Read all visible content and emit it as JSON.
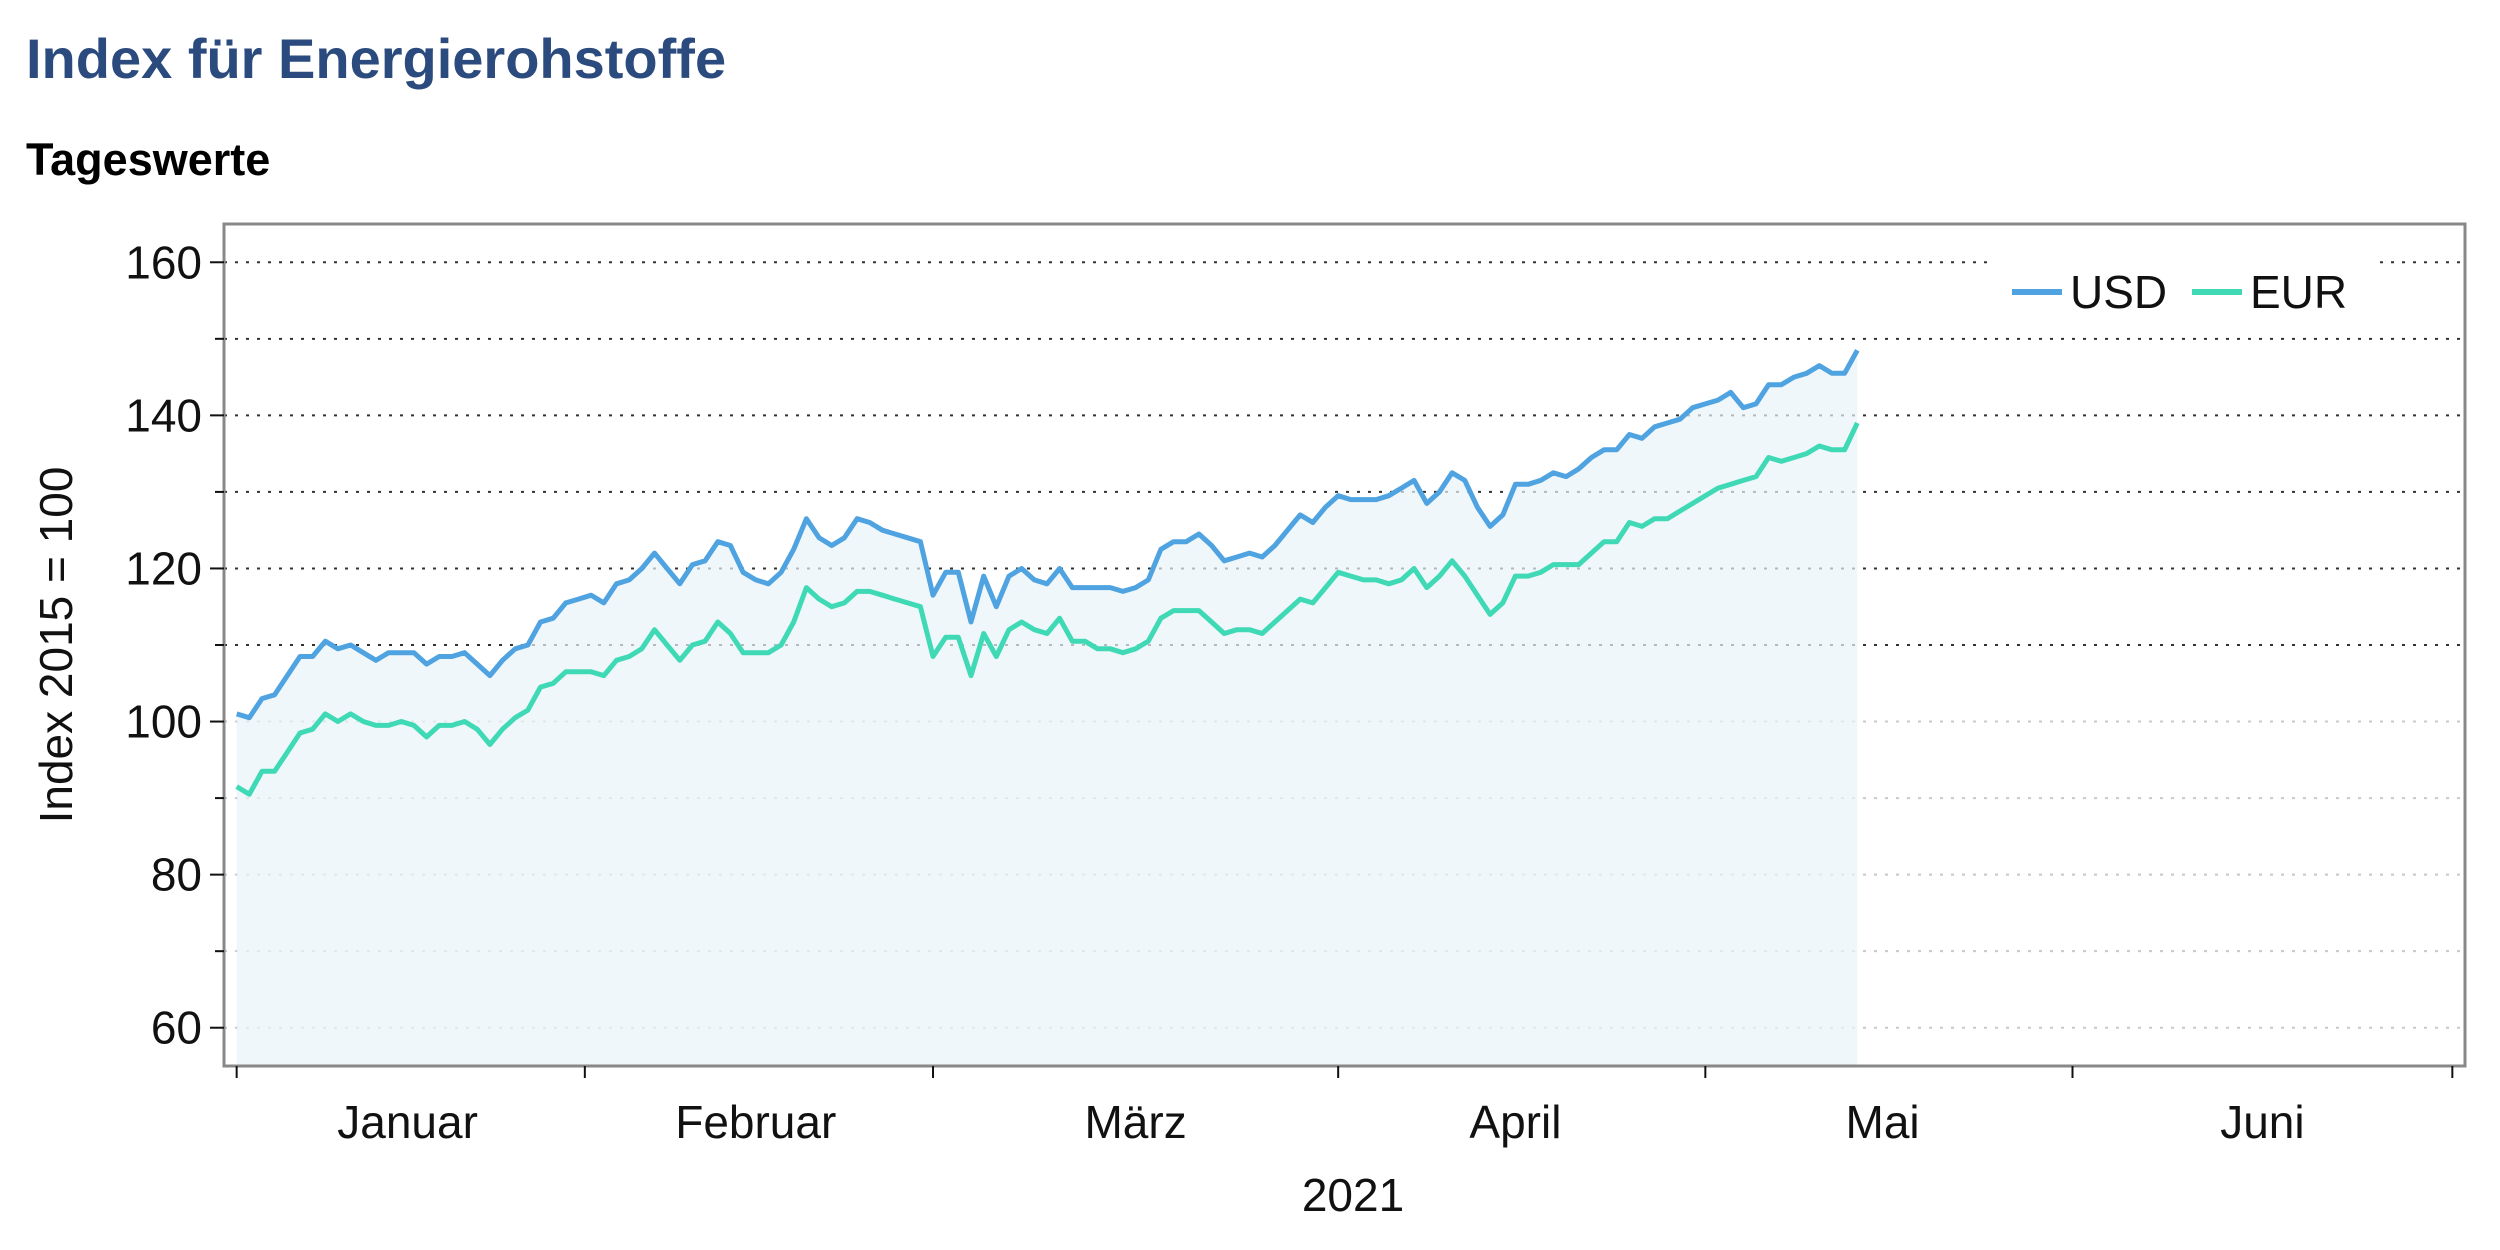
{
  "colors": {
    "title": "#2b4a7e",
    "usd": "#4fa3e0",
    "eur": "#3fd9b5",
    "fill": "#eaf4fa"
  },
  "chart_data": {
    "type": "line",
    "title": "Index für Energierohstoffe",
    "subtitle": "Tageswerte",
    "xlabel": "2021",
    "ylabel": "Index 2015 = 100",
    "ylim": [
      55,
      165
    ],
    "yticks": [
      60,
      80,
      100,
      120,
      140,
      160
    ],
    "xlim": [
      -1,
      176
    ],
    "month_labels": [
      "Januar",
      "Februar",
      "März",
      "April",
      "Mai",
      "Juni"
    ],
    "month_label_positions": [
      13.5,
      41,
      71,
      101,
      130,
      160
    ],
    "month_boundaries": [
      0,
      27.5,
      55,
      87,
      116,
      145,
      175
    ],
    "grid": true,
    "legend": "top-right",
    "series": [
      {
        "name": "USD",
        "color": "#4fa3e0",
        "values": [
          101,
          100.5,
          103,
          103.5,
          106,
          108.5,
          108.5,
          110.5,
          109.5,
          110,
          109,
          108,
          109,
          109,
          109,
          107.5,
          108.5,
          108.5,
          109,
          107.5,
          106,
          108,
          109.5,
          110,
          113,
          113.5,
          115.5,
          116,
          116.5,
          115.5,
          118,
          118.5,
          120,
          122,
          120,
          118,
          120.5,
          121,
          123.5,
          123,
          119.5,
          118.5,
          118,
          119.5,
          122.5,
          126.5,
          124,
          123,
          124,
          126.5,
          126,
          125,
          124.5,
          124,
          123.5,
          116.5,
          119.5,
          119.5,
          113,
          119,
          115,
          119,
          120,
          118.5,
          118,
          120,
          117.5,
          117.5,
          117.5,
          117.5,
          117,
          117.5,
          118.5,
          122.5,
          123.5,
          123.5,
          124.5,
          123,
          121,
          121.5,
          122,
          121.5,
          123,
          125,
          127,
          126,
          128,
          129.5,
          129,
          129,
          129,
          129.5,
          130.5,
          131.5,
          128.5,
          130,
          132.5,
          131.5,
          128,
          125.5,
          127,
          131,
          131,
          131.5,
          132.5,
          132,
          133,
          134.5,
          135.5,
          135.5,
          137.5,
          137,
          138.5,
          139,
          139.5,
          141,
          141.5,
          142,
          143,
          141,
          141.5,
          144,
          144,
          145,
          145.5,
          146.5,
          145.5,
          145.5,
          148.5
        ]
      },
      {
        "name": "EUR",
        "color": "#3fd9b5",
        "values": [
          91.5,
          90.5,
          93.5,
          93.5,
          96,
          98.5,
          99,
          101,
          100,
          101,
          100,
          99.5,
          99.5,
          100,
          99.5,
          98,
          99.5,
          99.5,
          100,
          99,
          97,
          99,
          100.5,
          101.5,
          104.5,
          105,
          106.5,
          106.5,
          106.5,
          106,
          108,
          108.5,
          109.5,
          112,
          110,
          108,
          110,
          110.5,
          113,
          111.5,
          109,
          109,
          109,
          110,
          113,
          117.5,
          116,
          115,
          115.5,
          117,
          117,
          116.5,
          116,
          115.5,
          115,
          108.5,
          111,
          111,
          106,
          111.5,
          108.5,
          112,
          113,
          112,
          111.5,
          113.5,
          110.5,
          110.5,
          109.5,
          109.5,
          109,
          109.5,
          110.5,
          113.5,
          114.5,
          114.5,
          114.5,
          113,
          111.5,
          112,
          112,
          111.5,
          113,
          114.5,
          116,
          115.5,
          117.5,
          119.5,
          119,
          118.5,
          118.5,
          118,
          118.5,
          120,
          117.5,
          119,
          121,
          119,
          116.5,
          114,
          115.5,
          119,
          119,
          119.5,
          120.5,
          120.5,
          120.5,
          122,
          123.5,
          123.5,
          126,
          125.5,
          126.5,
          126.5,
          127.5,
          128.5,
          129.5,
          130.5,
          131,
          131.5,
          132,
          134.5,
          134,
          134.5,
          135,
          136,
          135.5,
          135.5,
          139
        ]
      }
    ]
  }
}
